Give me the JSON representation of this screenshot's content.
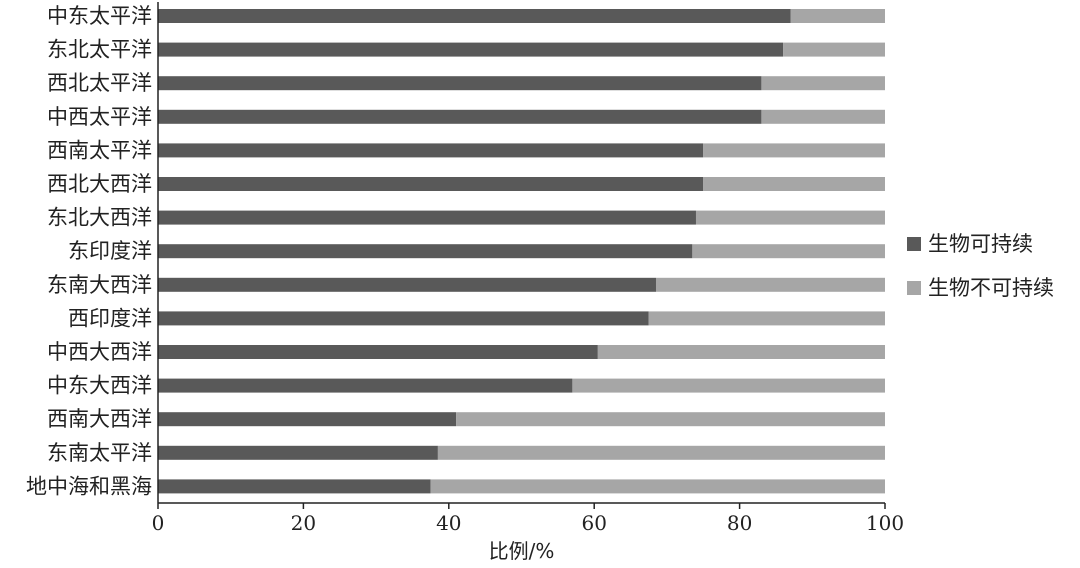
{
  "chart_data": {
    "type": "bar",
    "orientation": "horizontal",
    "stacked": true,
    "categories": [
      "中东太平洋",
      "东北太平洋",
      "西北太平洋",
      "中西太平洋",
      "西南太平洋",
      "西北大西洋",
      "东北大西洋",
      "东印度洋",
      "东南大西洋",
      "西印度洋",
      "中西大西洋",
      "中东大西洋",
      "西南大西洋",
      "东南太平洋",
      "地中海和黑海"
    ],
    "series": [
      {
        "name": "生物可持续",
        "color": "#595959",
        "values": [
          87,
          86,
          83,
          83,
          75,
          75,
          74,
          73.5,
          68.5,
          67.5,
          60.5,
          57,
          41,
          38.5,
          37.5
        ]
      },
      {
        "name": "生物不可持续",
        "color": "#a6a6a6",
        "values": [
          13,
          14,
          17,
          17,
          25,
          25,
          26,
          26.5,
          31.5,
          32.5,
          39.5,
          43,
          59,
          61.5,
          62.5
        ]
      }
    ],
    "xlabel": "比例/%",
    "ylabel": "",
    "xlim": [
      0,
      100
    ],
    "xticks": [
      "0",
      "20",
      "40",
      "60",
      "80",
      "100"
    ],
    "grid": false,
    "legend_position": "right"
  }
}
